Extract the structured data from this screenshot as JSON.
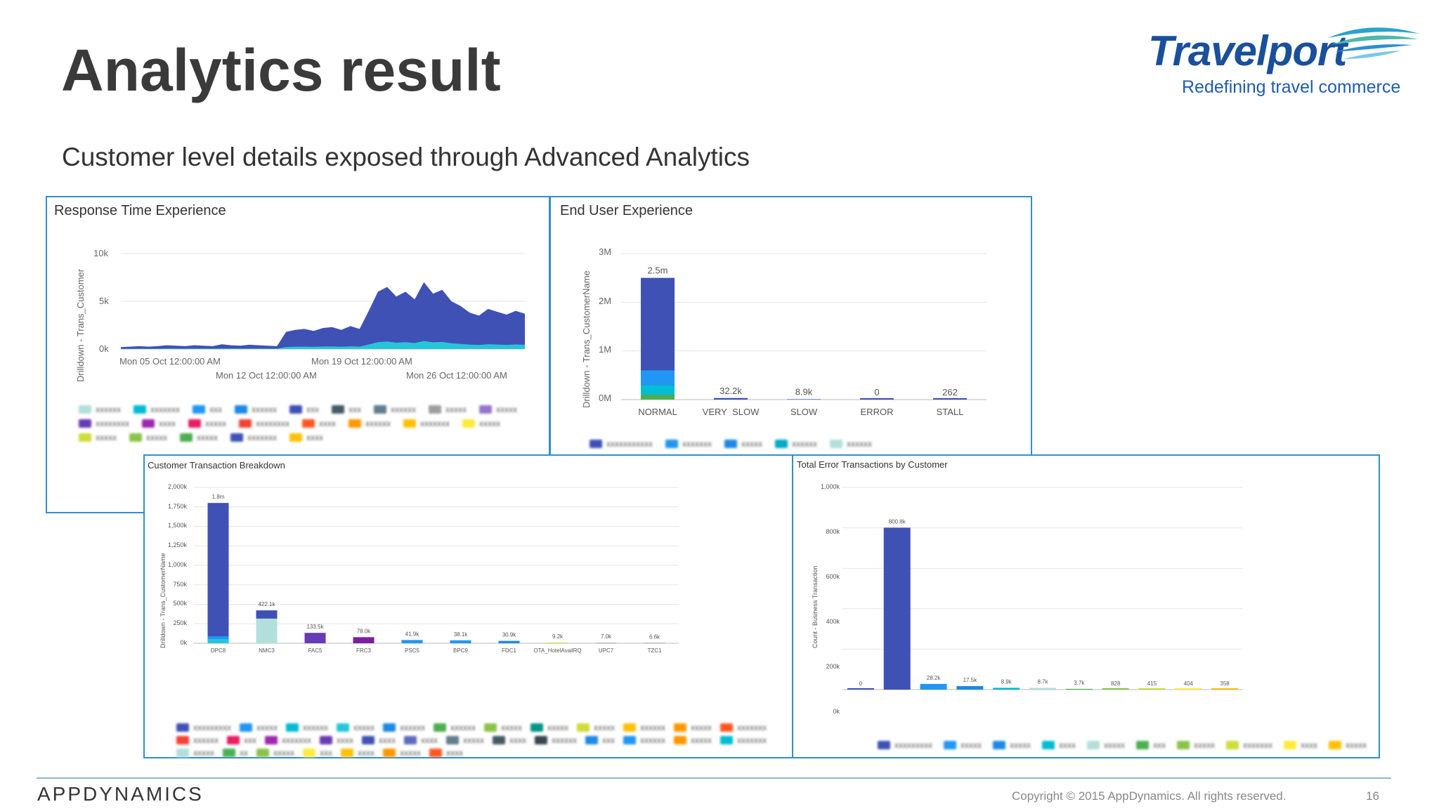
{
  "slide": {
    "title": "Analytics result",
    "subtitle": "Customer level details exposed through Advanced Analytics",
    "page_number": "16"
  },
  "branding": {
    "logo_text": "Travelport",
    "logo_tagline": "Redefining travel commerce",
    "footer_logo": "APPDYNAMICS",
    "copyright": "Copyright © 2015 AppDynamics. All rights reserved.",
    "brand_color": "#1a4f9c"
  },
  "colors": {
    "panel_border": "#2f8fd0",
    "series_primary": "#3f51b5",
    "series_secondary": "#2196f3",
    "series_teal": "#b2dfdb",
    "series_purple": "#673ab7"
  },
  "panels": {
    "response_time": {
      "title": "Response Time Experience",
      "ylabel": "Drilldown - Trans_Customer",
      "y_ticks": [
        "10k",
        "5k",
        "0k"
      ],
      "x_ticks_top": [
        "Mon 05 Oct 12:00:00 AM",
        "Mon 19 Oct 12:00:00 AM"
      ],
      "x_ticks_bottom": [
        "Mon 12 Oct 12:00:00 AM",
        "Mon 26 Oct 12:00:00 AM"
      ]
    },
    "end_user": {
      "title": "End User Experience",
      "ylabel": "Drilldown - Trans_CustomerName",
      "y_ticks": [
        "3M",
        "2M",
        "1M",
        "0M"
      ]
    },
    "customer_breakdown": {
      "title": "Customer Transaction Breakdown",
      "ylabel": "Drilldown - Trans_CustomerName",
      "y_ticks": [
        "2,000k",
        "1,750k",
        "1,500k",
        "1,250k",
        "1,000k",
        "750k",
        "500k",
        "250k",
        "0k"
      ]
    },
    "error_by_customer": {
      "title": "Total Error Transactions by Customer",
      "ylabel": "Count - Business Transaction",
      "y_ticks": [
        "1,000k",
        "800k",
        "600k",
        "400k",
        "200k",
        "0k"
      ]
    }
  },
  "chart_data": [
    {
      "type": "area",
      "title": "Response Time Experience",
      "ylabel": "Drilldown - Trans_Customer",
      "ylim": [
        0,
        10000
      ],
      "x_range": [
        "Mon 05 Oct 12:00:00 AM",
        "Mon 26 Oct 12:00:00 AM"
      ],
      "note_values": [
        200,
        250,
        300,
        250,
        300,
        400,
        350,
        300,
        400,
        350,
        300,
        500,
        400,
        350,
        450,
        400,
        350,
        300,
        1800,
        2000,
        2100,
        1900,
        2200,
        2300,
        2000,
        2400,
        2100,
        4000,
        6000,
        6500,
        5500,
        6000,
        5200,
        7000,
        5800,
        6200,
        5000,
        4500,
        3800,
        3500,
        4200,
        3900,
        3600,
        4000,
        3700
      ]
    },
    {
      "type": "bar",
      "title": "End User Experience",
      "ylabel": "Drilldown - Trans_CustomerName",
      "categories": [
        "NORMAL",
        "VERY_SLOW",
        "SLOW",
        "ERROR",
        "STALL"
      ],
      "values": [
        2500000,
        32200,
        8900,
        0,
        262
      ],
      "data_labels": [
        "2.5m",
        "32.2k",
        "8.9k",
        "0",
        "262"
      ],
      "ylim": [
        0,
        3000000
      ]
    },
    {
      "type": "bar",
      "title": "Customer Transaction Breakdown",
      "ylabel": "Drilldown - Trans_CustomerName",
      "categories": [
        "DPC8",
        "NMC3",
        "FAC5",
        "FRC3",
        "PSC5",
        "BPC9",
        "FDC1",
        "OTA_HotelAvailRQ",
        "UPC7",
        "TZC1"
      ],
      "values": [
        1800000,
        422100,
        133500,
        78000,
        41900,
        38100,
        30900,
        9200,
        7000,
        6600
      ],
      "data_labels": [
        "1.8m",
        "422.1k",
        "133.5k",
        "78.0k",
        "41.9k",
        "38.1k",
        "30.9k",
        "9.2k",
        "7.0k",
        "6.6k"
      ],
      "ylim": [
        0,
        2000000
      ]
    },
    {
      "type": "bar",
      "title": "Total Error Transactions by Customer",
      "ylabel": "Count - Business Transaction",
      "values": [
        0,
        800800,
        28200,
        17500,
        8900,
        8700,
        3700,
        828,
        415,
        404,
        358
      ],
      "data_labels": [
        "0",
        "800.8k",
        "28.2k",
        "17.5k",
        "8.9k",
        "8.7k",
        "3.7k",
        "828",
        "415",
        "404",
        "358"
      ],
      "ylim": [
        0,
        1000000
      ]
    }
  ],
  "legends": {
    "response_time": [
      {
        "label": "xxxxxx",
        "color": "#b2dfdb"
      },
      {
        "label": "xxxxxxx",
        "color": "#00bcd4"
      },
      {
        "label": "xxx",
        "color": "#2196f3"
      },
      {
        "label": "xxxxxx",
        "color": "#1e88e5"
      },
      {
        "label": "xxx",
        "color": "#3f51b5"
      },
      {
        "label": "xxx",
        "color": "#455a64"
      },
      {
        "label": "xxxxxx",
        "color": "#607d8b"
      },
      {
        "label": "xxxxx",
        "color": "#9e9e9e"
      },
      {
        "label": "xxxxx",
        "color": "#9575cd"
      },
      {
        "label": "xxxxxxxx",
        "color": "#673ab7"
      },
      {
        "label": "xxxx",
        "color": "#9c27b0"
      },
      {
        "label": "xxxxx",
        "color": "#e91e63"
      },
      {
        "label": "xxxxxxxx",
        "color": "#f44336"
      },
      {
        "label": "xxxx",
        "color": "#ff5722"
      },
      {
        "label": "xxxxxx",
        "color": "#ff9800"
      },
      {
        "label": "xxxxxxx",
        "color": "#ffc107"
      },
      {
        "label": "xxxxx",
        "color": "#ffeb3b"
      },
      {
        "label": "xxxxx",
        "color": "#cddc39"
      },
      {
        "label": "xxxxx",
        "color": "#8bc34a"
      },
      {
        "label": "xxxxx",
        "color": "#4caf50"
      },
      {
        "label": "xxxxxxx",
        "color": "#3f51b5"
      },
      {
        "label": "xxxx",
        "color": "#ffc107"
      }
    ],
    "end_user": [
      {
        "label": "xxxxxxxxxxx",
        "color": "#3f51b5"
      },
      {
        "label": "xxxxxxx",
        "color": "#2196f3"
      },
      {
        "label": "xxxxx",
        "color": "#1e88e5"
      },
      {
        "label": "xxxxxx",
        "color": "#00acc1"
      },
      {
        "label": "xxxxxx",
        "color": "#b2dfdb"
      }
    ],
    "customer_breakdown": [
      {
        "label": "xxxxxxxxx",
        "color": "#3f51b5"
      },
      {
        "label": "xxxxx",
        "color": "#2196f3"
      },
      {
        "label": "xxxxxx",
        "color": "#00bcd4"
      },
      {
        "label": "xxxxx",
        "color": "#26c6da"
      },
      {
        "label": "xxxxxx",
        "color": "#1e88e5"
      },
      {
        "label": "xxxxxx",
        "color": "#4caf50"
      },
      {
        "label": "xxxxx",
        "color": "#8bc34a"
      },
      {
        "label": "xxxxx",
        "color": "#009688"
      },
      {
        "label": "xxxxx",
        "color": "#cddc39"
      },
      {
        "label": "xxxxxx",
        "color": "#ffc107"
      },
      {
        "label": "xxxxx",
        "color": "#ff9800"
      },
      {
        "label": "xxxxxxx",
        "color": "#ff5722"
      },
      {
        "label": "xxxxxx",
        "color": "#f44336"
      },
      {
        "label": "xxx",
        "color": "#e91e63"
      },
      {
        "label": "xxxxxxx",
        "color": "#9c27b0"
      },
      {
        "label": "xxxx",
        "color": "#673ab7"
      },
      {
        "label": "xxxx",
        "color": "#3f51b5"
      },
      {
        "label": "xxxx",
        "color": "#5c6bc0"
      },
      {
        "label": "xxxxx",
        "color": "#607d8b"
      },
      {
        "label": "xxxx",
        "color": "#455a64"
      },
      {
        "label": "xxxxxx",
        "color": "#37474f"
      },
      {
        "label": "xxx",
        "color": "#1e88e5"
      },
      {
        "label": "xxxxxx",
        "color": "#2196f3"
      },
      {
        "label": "xxxxx",
        "color": "#ff9800"
      },
      {
        "label": "xxxxxxx",
        "color": "#00bcd4"
      },
      {
        "label": "xxxxx",
        "color": "#b2dfdb"
      },
      {
        "label": "xx",
        "color": "#4caf50"
      },
      {
        "label": "xxxxx",
        "color": "#8bc34a"
      },
      {
        "label": "xxx",
        "color": "#ffeb3b"
      },
      {
        "label": "xxxx",
        "color": "#ffc107"
      },
      {
        "label": "xxxxx",
        "color": "#ff9800"
      },
      {
        "label": "xxxx",
        "color": "#ff5722"
      }
    ],
    "error_by_customer": [
      {
        "label": "xxxxxxxxx",
        "color": "#3f51b5"
      },
      {
        "label": "xxxxx",
        "color": "#2196f3"
      },
      {
        "label": "xxxxx",
        "color": "#1e88e5"
      },
      {
        "label": "xxxx",
        "color": "#00bcd4"
      },
      {
        "label": "xxxxx",
        "color": "#b2dfdb"
      },
      {
        "label": "xxx",
        "color": "#4caf50"
      },
      {
        "label": "xxxxx",
        "color": "#8bc34a"
      },
      {
        "label": "xxxxxxx",
        "color": "#cddc39"
      },
      {
        "label": "xxxx",
        "color": "#ffeb3b"
      },
      {
        "label": "xxxxx",
        "color": "#ffc107"
      }
    ]
  }
}
